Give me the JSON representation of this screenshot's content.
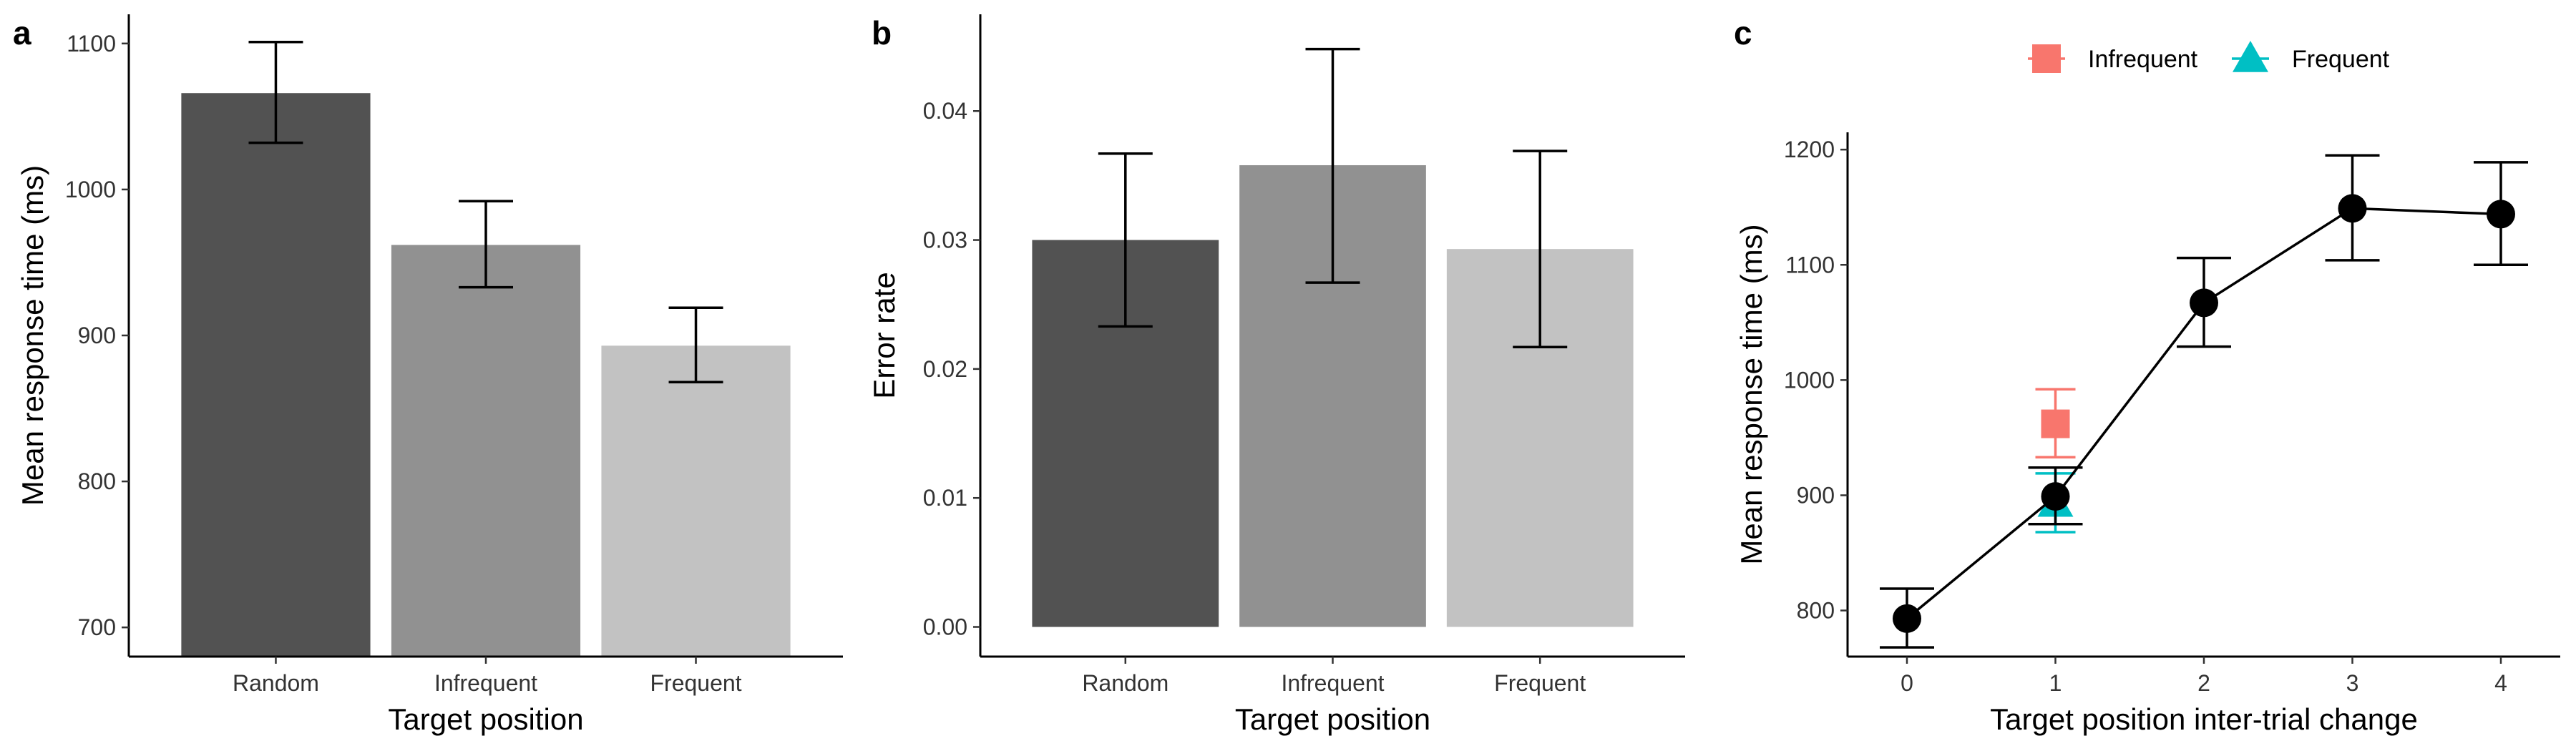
{
  "chart_data": [
    {
      "panel": "a",
      "type": "bar",
      "categories": [
        "Random",
        "Infrequent",
        "Frequent"
      ],
      "values": [
        1066,
        962,
        893
      ],
      "error": [
        [
          1032,
          1101
        ],
        [
          933,
          992
        ],
        [
          868,
          919
        ]
      ],
      "colors": [
        "#525252",
        "#919191",
        "#c2c2c2"
      ],
      "xlabel": "Target position",
      "ylabel": "Mean response time (ms)",
      "ylim": [
        680,
        1120
      ],
      "yticks": [
        "700",
        "800",
        "900",
        "1000",
        "1100"
      ],
      "yticks_values": [
        700,
        800,
        900,
        1000,
        1100
      ]
    },
    {
      "panel": "b",
      "type": "bar",
      "categories": [
        "Random",
        "Infrequent",
        "Frequent"
      ],
      "values": [
        0.03,
        0.0358,
        0.0293
      ],
      "error": [
        [
          0.0233,
          0.0367
        ],
        [
          0.0267,
          0.0448
        ],
        [
          0.0217,
          0.0369
        ]
      ],
      "colors": [
        "#525252",
        "#919191",
        "#c2c2c2"
      ],
      "xlabel": "Target position",
      "ylabel": "Error rate",
      "ylim": [
        -0.0023,
        0.0475
      ],
      "yticks": [
        "0.00",
        "0.01",
        "0.02",
        "0.03",
        "0.04"
      ],
      "yticks_values": [
        0,
        0.01,
        0.02,
        0.03,
        0.04
      ]
    },
    {
      "panel": "c",
      "type": "line",
      "xlabel": "Target position inter-trial change",
      "ylabel": "Mean response time (ms)",
      "xlim": [
        -0.4,
        4.4
      ],
      "ylim": [
        760,
        1215
      ],
      "xticks": [
        "0",
        "1",
        "2",
        "3",
        "4"
      ],
      "xticks_values": [
        0,
        1,
        2,
        3,
        4
      ],
      "yticks": [
        "800",
        "900",
        "1000",
        "1100",
        "1200"
      ],
      "yticks_values": [
        800,
        900,
        1000,
        1100,
        1200
      ],
      "series": [
        {
          "x": [
            0,
            1,
            2,
            3,
            4
          ],
          "y": [
            793,
            899,
            1067,
            1149,
            1144
          ],
          "error": [
            [
              768,
              819
            ],
            [
              875,
              924
            ],
            [
              1029,
              1106
            ],
            [
              1104,
              1195
            ],
            [
              1100,
              1189
            ]
          ],
          "color": "#000000",
          "marker": "circle"
        }
      ],
      "points": [
        {
          "name": "Infrequent",
          "x": 1,
          "y": 962,
          "error": [
            933,
            992
          ],
          "color": "#F8766D",
          "marker": "square"
        },
        {
          "name": "Frequent",
          "x": 1,
          "y": 893,
          "error": [
            868,
            919
          ],
          "color": "#00BFC4",
          "marker": "triangle"
        }
      ],
      "legend": {
        "position": "top",
        "entries": [
          {
            "label": "Infrequent",
            "color": "#F8766D",
            "marker": "square"
          },
          {
            "label": "Frequent",
            "color": "#00BFC4",
            "marker": "triangle"
          }
        ]
      }
    }
  ]
}
